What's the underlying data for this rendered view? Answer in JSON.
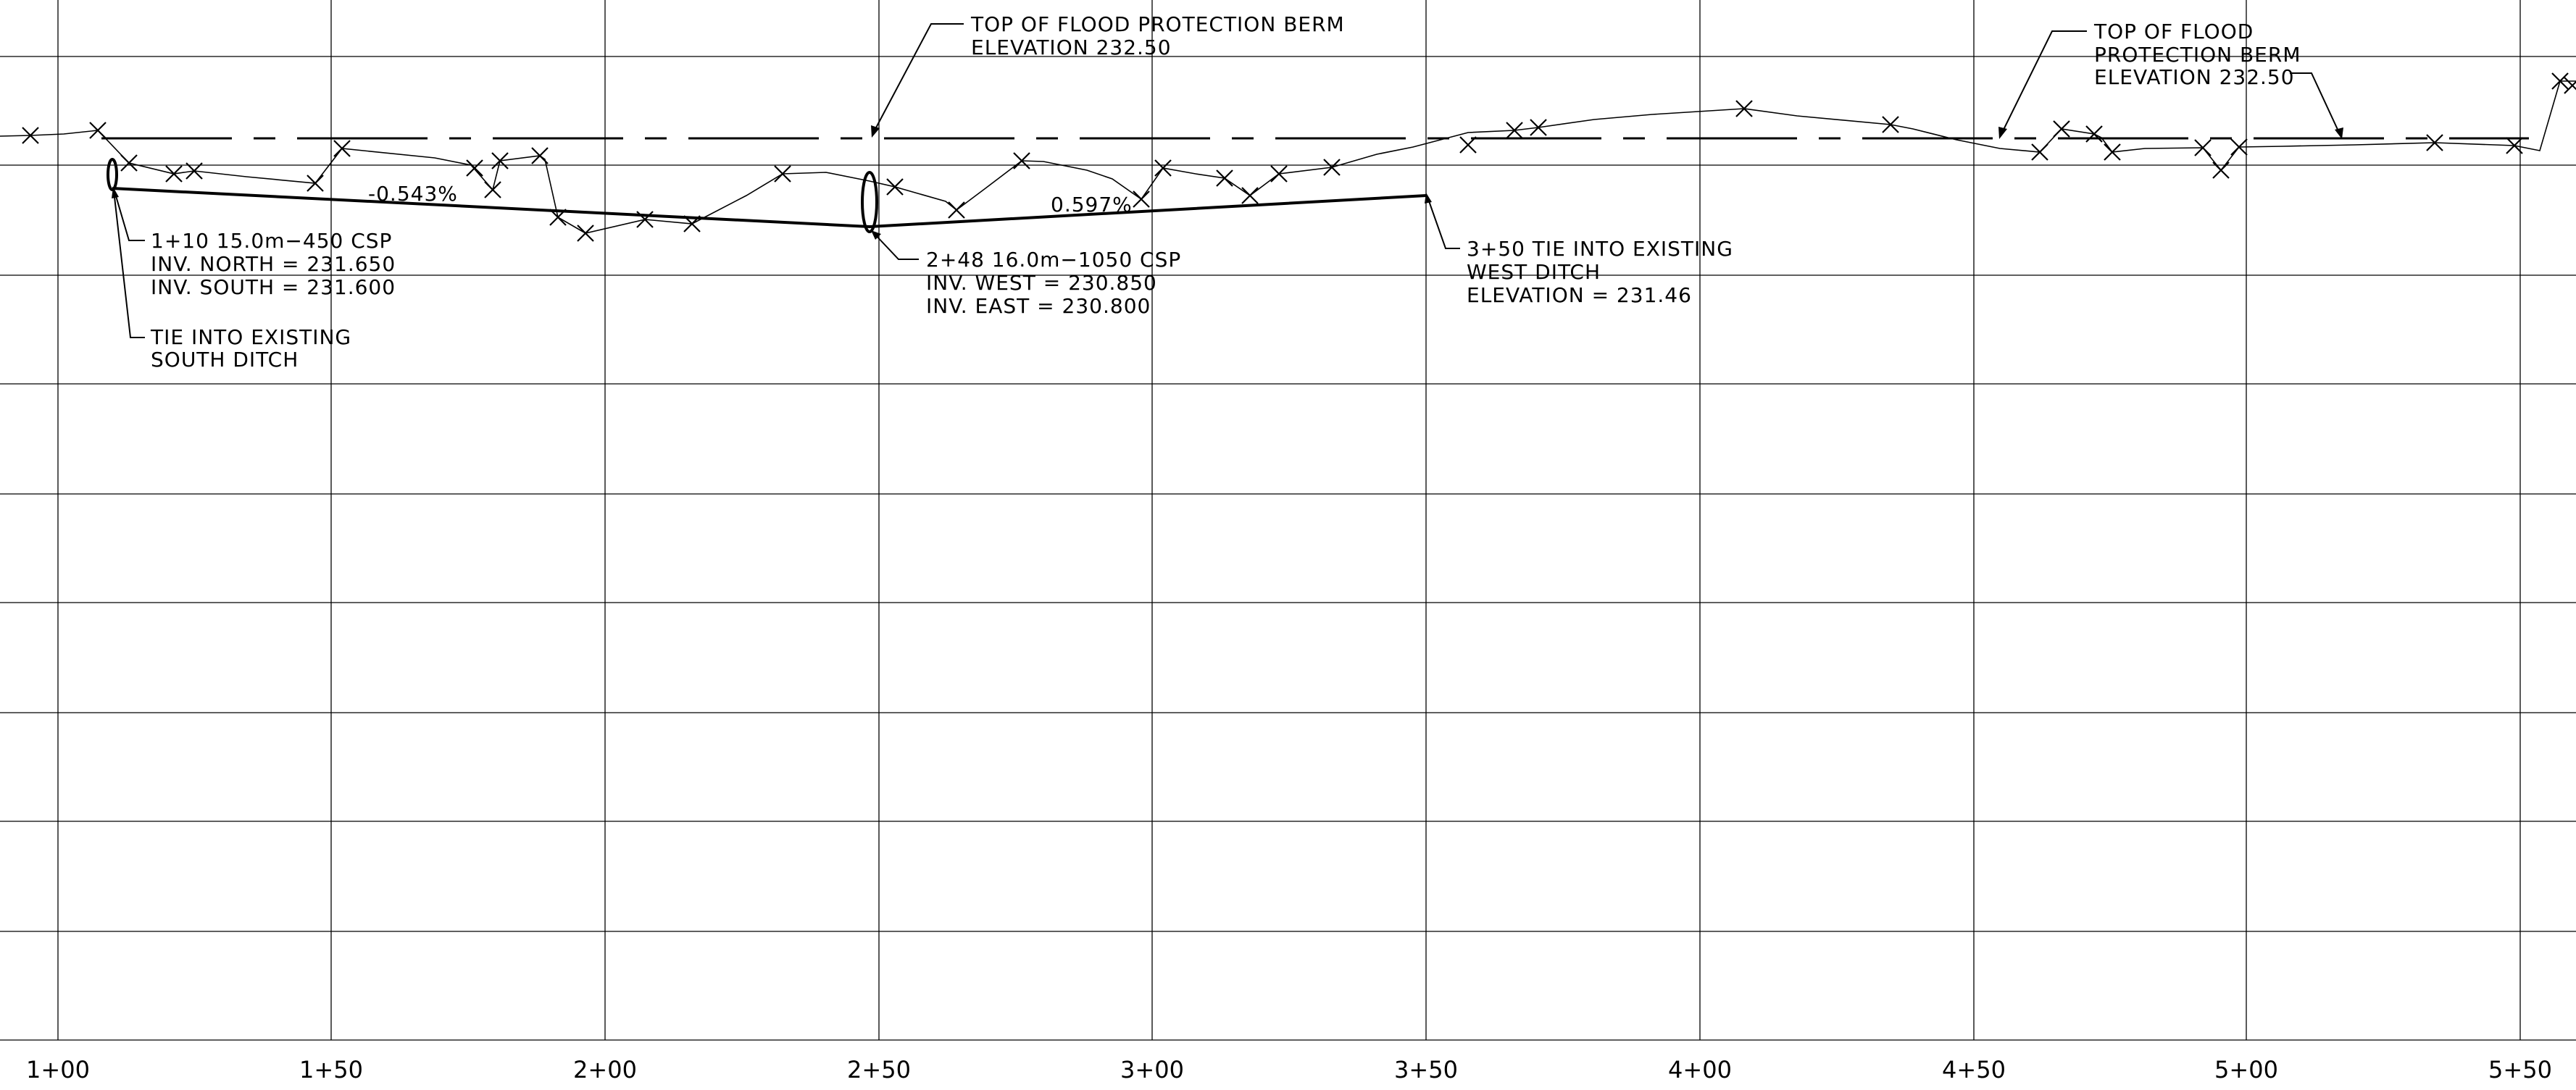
{
  "stations": [
    "1+00",
    "1+50",
    "2+00",
    "2+50",
    "3+00",
    "3+50",
    "4+00",
    "4+50",
    "5+00",
    "5+50"
  ],
  "slopes": {
    "left": "-0.543%",
    "right": "0.597%"
  },
  "callouts": {
    "berm_top_center": {
      "line1": "TOP OF FLOOD PROTECTION BERM",
      "line2": "ELEVATION 232.50"
    },
    "berm_top_right": {
      "line1": "TOP OF FLOOD",
      "line2": "PROTECTION BERM",
      "line3": "ELEVATION 232.50"
    },
    "culvert_1": {
      "line1": "1+10 15.0m−450 CSP",
      "line2": "INV. NORTH = 231.650",
      "line3": "INV. SOUTH = 231.600"
    },
    "tie_south": {
      "line1": "TIE INTO EXISTING",
      "line2": "SOUTH DITCH"
    },
    "culvert_2": {
      "line1": "2+48 16.0m−1050 CSP",
      "line2": "INV. WEST = 230.850",
      "line3": "INV. EAST = 230.800"
    },
    "tie_west": {
      "line1": "3+50 TIE INTO EXISTING",
      "line2": "WEST DITCH",
      "line3": "ELEVATION = 231.46"
    }
  }
}
